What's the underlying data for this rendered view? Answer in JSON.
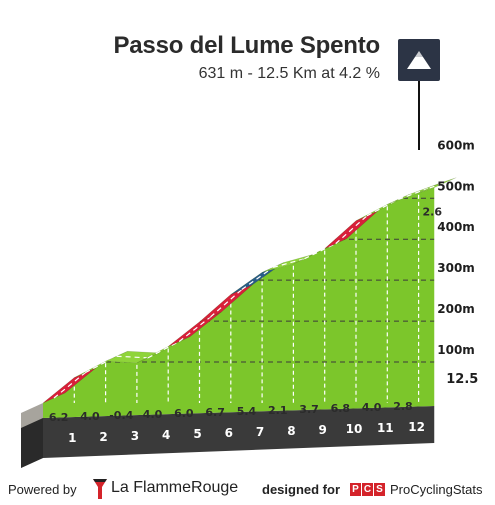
{
  "header": {
    "title": "Passo del Lume Spento",
    "subtitle": "631 m - 12.5 Km at 4.2 %"
  },
  "chart_data": {
    "type": "area",
    "title": "Passo del Lume Spento",
    "subtitle": "631 m - 12.5 Km at 4.2 %",
    "xlabel": "",
    "ylabel": "",
    "x_unit": "km",
    "y_unit": "m",
    "km_ticks": [
      "1",
      "2",
      "3",
      "4",
      "5",
      "6",
      "7",
      "8",
      "9",
      "10",
      "11",
      "12",
      "12.5"
    ],
    "altitude_ticks": [
      "100m",
      "200m",
      "300m",
      "400m",
      "500m",
      "600m"
    ],
    "ylim": [
      0,
      650
    ],
    "xlim": [
      0,
      12.5
    ],
    "segments": [
      {
        "km": 1,
        "gradient": 6.2
      },
      {
        "km": 2,
        "gradient": 4.0
      },
      {
        "km": 3,
        "gradient": -0.4
      },
      {
        "km": 4,
        "gradient": 4.0
      },
      {
        "km": 5,
        "gradient": 6.0
      },
      {
        "km": 6,
        "gradient": 6.7
      },
      {
        "km": 7,
        "gradient": 5.4
      },
      {
        "km": 8,
        "gradient": 2.1
      },
      {
        "km": 9,
        "gradient": 3.7
      },
      {
        "km": 10,
        "gradient": 6.8
      },
      {
        "km": 11,
        "gradient": 4.0
      },
      {
        "km": 12,
        "gradient": 2.8
      },
      {
        "km": 12.5,
        "gradient": 2.6
      }
    ],
    "gradient_labels": [
      "6.2",
      "4.0",
      "-0.4",
      "4.0",
      "6.0",
      "6.7",
      "5.4",
      "2.1",
      "3.7",
      "6.8",
      "4.0",
      "2.8",
      "2.6"
    ],
    "colors": {
      "green_face": "#7cc62b",
      "green_top": "#8fd43a",
      "red_top": "#d8203a",
      "blue_top": "#2a5d88",
      "base_front": "#3a3a3a",
      "base_side": "#a7a49d"
    }
  },
  "footer": {
    "powered_by": "Powered by",
    "brand_name": "La FlammeRouge",
    "designed_for": "designed for",
    "pcs_letters": [
      "P",
      "C",
      "S"
    ],
    "pcs_name": "ProCyclingStats"
  }
}
